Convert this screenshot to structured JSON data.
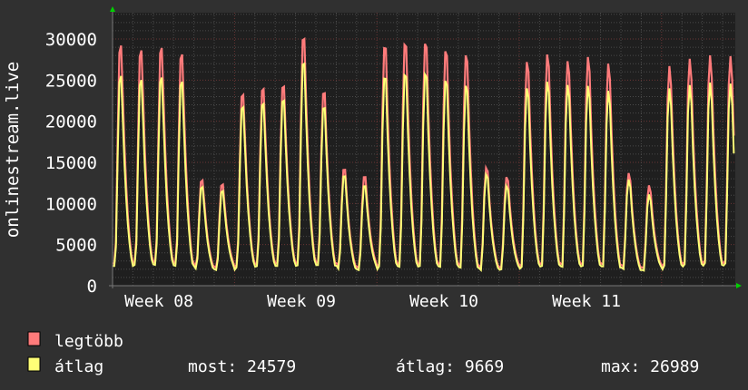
{
  "chart_data": {
    "type": "line",
    "ylabel": "onlinestream.live",
    "ylim": [
      0,
      30000
    ],
    "y_ticks": [
      "0",
      "5000",
      "10000",
      "15000",
      "20000",
      "25000",
      "30000"
    ],
    "y_tick_values": [
      0,
      5000,
      10000,
      15000,
      20000,
      25000,
      30000
    ],
    "x_tick_labels": [
      "Week 08",
      "Week 09",
      "Week 10",
      "Week 11"
    ],
    "x_days_shown": 30.6,
    "grid": true,
    "legend_placement": "bottom-left",
    "series": [
      {
        "name": "legtöbb",
        "color": "#ff7b7b",
        "daily_peaks": [
          29200,
          28600,
          28900,
          28100,
          12800,
          12300,
          23200,
          23900,
          24200,
          30000,
          23400,
          14100,
          13200,
          28900,
          29300,
          29400,
          28500,
          28000,
          14300,
          13200,
          27200,
          28100,
          27300,
          27800,
          27000,
          13700,
          12200,
          26700,
          27600,
          28000,
          27900
        ],
        "daily_troughs": [
          2700,
          2900,
          2800,
          2700,
          2300,
          2200,
          2600,
          2700,
          2700,
          2800,
          2800,
          2300,
          2200,
          2700,
          2600,
          2700,
          2600,
          2500,
          2200,
          2300,
          2600,
          2700,
          2600,
          2700,
          2600,
          2300,
          2100,
          2600,
          2700,
          2800,
          2700
        ]
      },
      {
        "name": "átlag",
        "color": "#ffff77",
        "daily_peaks": [
          25500,
          25000,
          25300,
          24800,
          12000,
          11500,
          21700,
          22100,
          22500,
          27000,
          21600,
          13300,
          12100,
          25200,
          25600,
          25700,
          24900,
          24300,
          13500,
          12100,
          24000,
          24800,
          24400,
          24300,
          23700,
          12900,
          11100,
          24000,
          24400,
          24700,
          24579
        ],
        "daily_troughs": [
          2400,
          2600,
          2500,
          2400,
          2000,
          1900,
          2300,
          2400,
          2400,
          2500,
          2500,
          2000,
          1900,
          2400,
          2300,
          2400,
          2300,
          2200,
          1900,
          2000,
          2300,
          2400,
          2300,
          2400,
          2300,
          2000,
          1800,
          2300,
          2400,
          2500,
          2400
        ]
      }
    ]
  },
  "legend": {
    "items": [
      {
        "label": "legtöbb",
        "color": "#ff7b7b"
      },
      {
        "label": "átlag",
        "color": "#ffff77"
      }
    ],
    "stats": {
      "current": "most: 24579",
      "average": "átlag: 9669",
      "maximum": "max: 26989"
    }
  }
}
